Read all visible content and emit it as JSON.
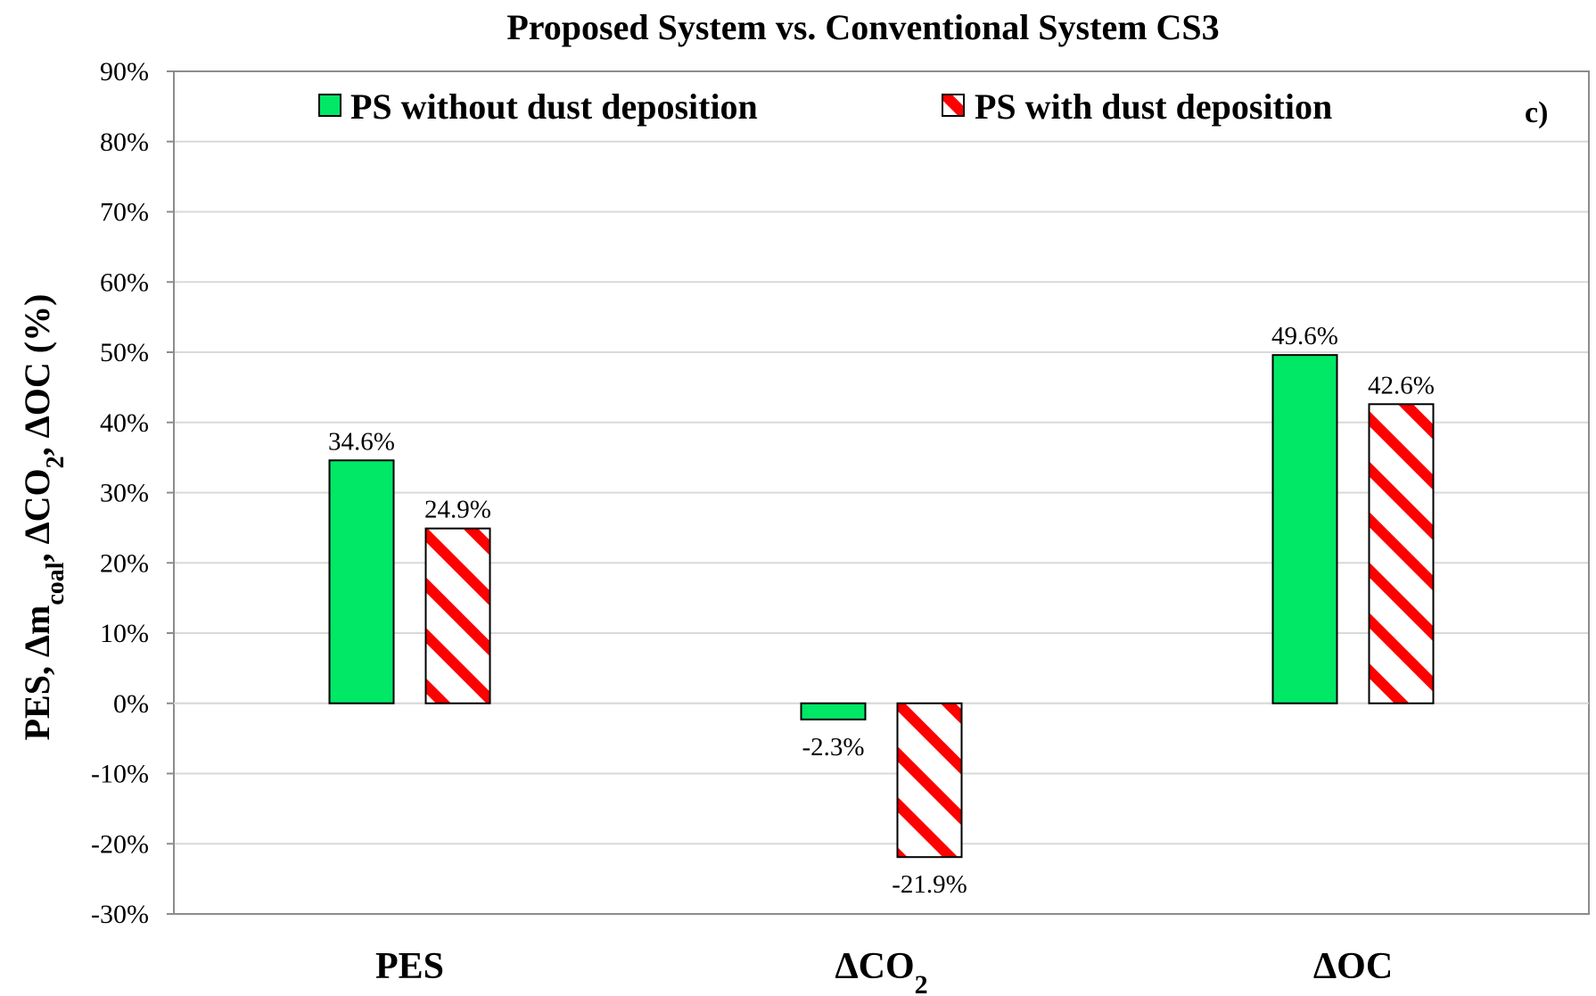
{
  "chart_data": {
    "type": "bar",
    "title": "Proposed System vs. Conventional System CS3",
    "panel_label": "c)",
    "ylabel": {
      "text": "PES, Δm",
      "sub1": "coal",
      "sep1": ", ΔCO",
      "sub2": "2",
      "rest": ", ΔOC (%)"
    },
    "xlabel": "",
    "categories": [
      {
        "main": "PES",
        "sub": ""
      },
      {
        "main": "ΔCO",
        "sub": "2"
      },
      {
        "main": "ΔOC",
        "sub": ""
      }
    ],
    "ylim": [
      -30,
      90
    ],
    "ytick_step": 10,
    "ytick_suffix": "%",
    "grid": true,
    "legend_position": "top",
    "series": [
      {
        "name": "PS without dust deposition",
        "values": [
          34.6,
          -2.3,
          49.6
        ],
        "labels": [
          "34.6%",
          "-2.3%",
          "49.6%"
        ],
        "color": "#00e866",
        "pattern": "solid"
      },
      {
        "name": "PS with dust deposition",
        "values": [
          24.9,
          -21.9,
          42.6
        ],
        "labels": [
          "24.9%",
          "-21.9%",
          "42.6%"
        ],
        "color": "#ff0000",
        "pattern": "diagonal-stripes"
      }
    ]
  },
  "colors": {
    "gridline": "#d9d9d9",
    "axis": "#8c8c8c",
    "stripe_bg": "#ffffff",
    "text": "#000000"
  }
}
